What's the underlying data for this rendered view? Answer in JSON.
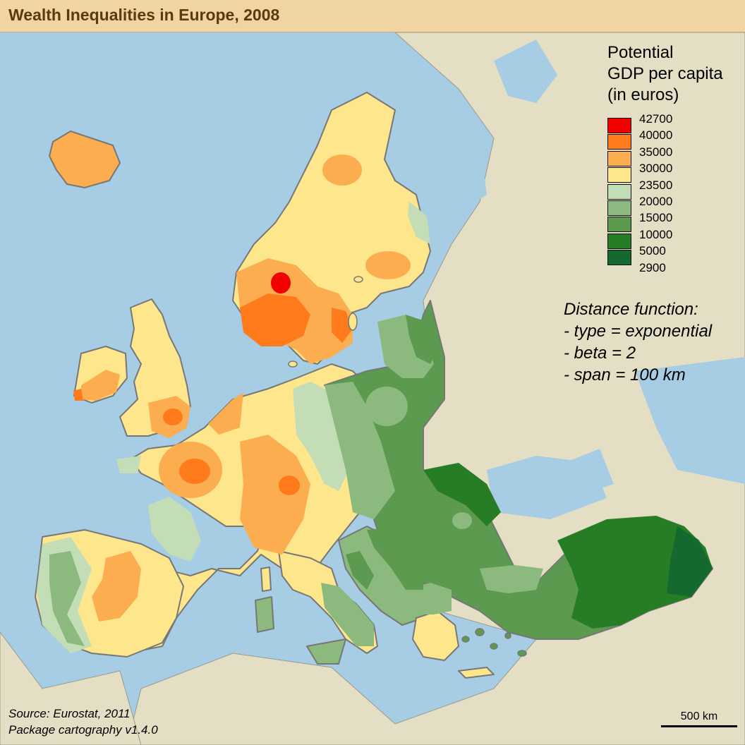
{
  "title": "Wealth Inequalities in Europe, 2008",
  "legend": {
    "title_lines": [
      "Potential",
      "GDP per capita",
      "(in euros)"
    ],
    "classes": [
      {
        "label": "42700",
        "color": "#f20000"
      },
      {
        "label": "40000",
        "color": "#ff7a1a"
      },
      {
        "label": "35000",
        "color": "#fbad4f"
      },
      {
        "label": "30000",
        "color": "#fee68c"
      },
      {
        "label": "23500",
        "color": "#c3ddb6"
      },
      {
        "label": "20000",
        "color": "#8cba7e"
      },
      {
        "label": "15000",
        "color": "#5c9a50"
      },
      {
        "label": "10000",
        "color": "#277d25"
      },
      {
        "label": "5000",
        "color": "#146a2e"
      },
      {
        "label": "2900",
        "color": null
      }
    ]
  },
  "distance_function": {
    "lines": [
      "Distance function:",
      "- type = exponential",
      "- beta = 2",
      "- span = 100 km"
    ]
  },
  "source": {
    "line1": "Source: Eurostat, 2011",
    "line2": "Package cartography v1.4.0"
  },
  "scale": {
    "label": "500 km"
  },
  "colors": {
    "sea": "#a6cde3",
    "land_outside": "#e4dfc4",
    "border": "#808080",
    "title_band": "#f0d4a2",
    "title_text": "#5b3a12"
  }
}
